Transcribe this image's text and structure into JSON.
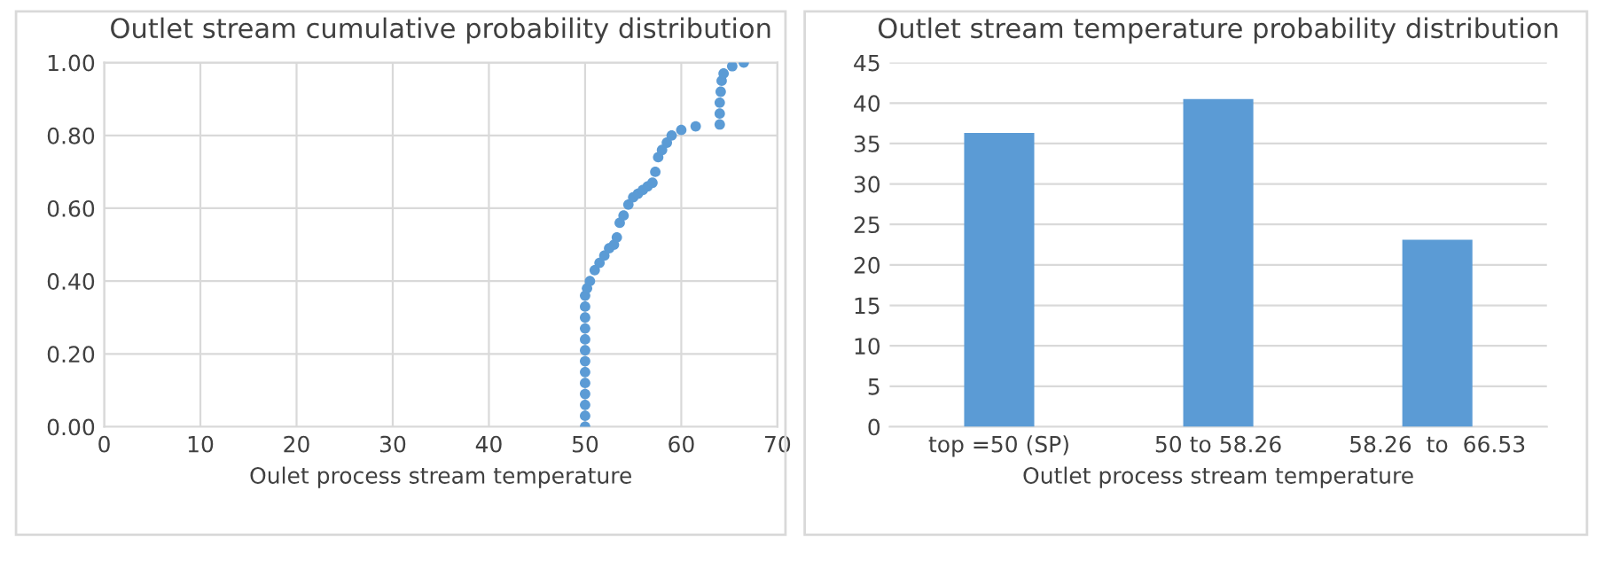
{
  "chart_data": [
    {
      "type": "scatter",
      "title": "Outlet stream cumulative probability distribution",
      "xlabel": "Oulet process stream temperature",
      "marker": "circle",
      "grid": true,
      "xlim": [
        0,
        70
      ],
      "xticks": [
        0,
        10,
        20,
        30,
        40,
        50,
        60,
        70
      ],
      "ylim": [
        0,
        1
      ],
      "yticks": [
        {
          "value": 0,
          "label": "0.00"
        },
        {
          "value": 0.2,
          "label": "0.20"
        },
        {
          "value": 0.4,
          "label": "0.40"
        },
        {
          "value": 0.6,
          "label": "0.60"
        },
        {
          "value": 0.8,
          "label": "0.80"
        },
        {
          "value": 1,
          "label": "1.00"
        }
      ],
      "series": [
        {
          "color": "#5b9bd5",
          "x": [
            50,
            50,
            50,
            50,
            50,
            50,
            50,
            50,
            50,
            50,
            50,
            50,
            50,
            50.2,
            50.5,
            51,
            51.5,
            52,
            52.5,
            53,
            53.3,
            53.6,
            54,
            54.5,
            55,
            55.5,
            56,
            56.5,
            57,
            57.3,
            57.6,
            58,
            58.5,
            59,
            60,
            61.5,
            64,
            64,
            64,
            64.1,
            64.2,
            64.4,
            65.3,
            66.5
          ],
          "values": [
            0,
            0.03,
            0.06,
            0.09,
            0.12,
            0.15,
            0.18,
            0.21,
            0.24,
            0.27,
            0.3,
            0.33,
            0.36,
            0.38,
            0.4,
            0.43,
            0.45,
            0.47,
            0.49,
            0.5,
            0.52,
            0.56,
            0.58,
            0.61,
            0.63,
            0.64,
            0.65,
            0.66,
            0.67,
            0.7,
            0.74,
            0.76,
            0.78,
            0.8,
            0.815,
            0.825,
            0.83,
            0.86,
            0.89,
            0.92,
            0.95,
            0.97,
            0.99,
            1.0
          ]
        }
      ]
    },
    {
      "type": "bar",
      "title": "Outlet stream temperature probability distribution",
      "xlabel": "Outlet process stream temperature",
      "grid": "y",
      "categories": [
        "top =50 (SP)",
        "50 to 58.26",
        "58.26  to  66.53"
      ],
      "values": [
        36.3,
        40.5,
        23.1
      ],
      "color": "#5b9bd5",
      "ylim": [
        0,
        45
      ],
      "yticks": [
        0,
        5,
        10,
        15,
        20,
        25,
        30,
        35,
        40,
        45
      ]
    }
  ]
}
